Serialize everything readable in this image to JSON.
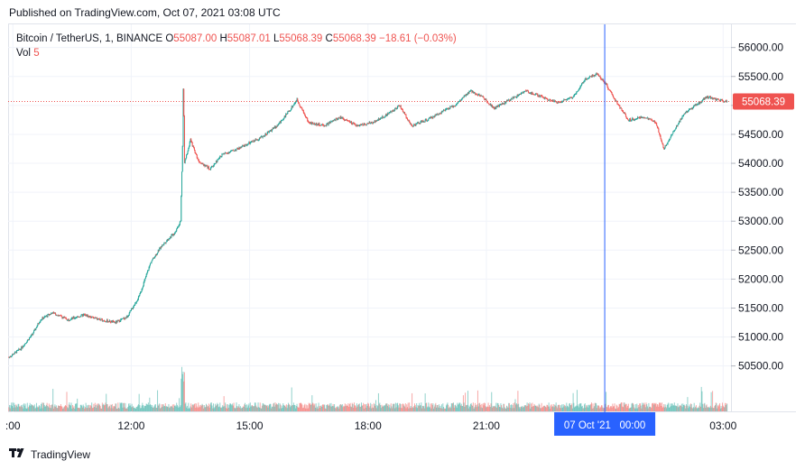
{
  "header": {
    "published": "Published on TradingView.com, Oct 07, 2021 03:08 UTC"
  },
  "legend": {
    "symbol": "Bitcoin / TetherUS, 1, BINANCE",
    "o_label": "O",
    "o_value": "55087.00",
    "h_label": "H",
    "h_value": "55087.01",
    "l_label": "L",
    "l_value": "55068.39",
    "c_label": "C",
    "c_value": "55068.39",
    "change": "−18.61 (−0.03%)",
    "vol_label": "Vol",
    "vol_value": "5"
  },
  "footer": {
    "brand": "TradingView",
    "logo_icon": "tradingview-logo-icon"
  },
  "colors": {
    "up": "#26a69a",
    "down": "#ef5350",
    "crosshair": "#2962ff",
    "price_tag": "#ef5350"
  },
  "chart_data": {
    "type": "candlestick",
    "symbol": "Bitcoin / TetherUS",
    "interval": "1",
    "exchange": "BINANCE",
    "last_price": 55068.39,
    "last_price_label": "55068.39",
    "crosshair_label": "07 Oct '21   00:00",
    "ylim": [
      49700,
      56400
    ],
    "y_ticks": [
      50500,
      51000,
      51500,
      52000,
      52500,
      53000,
      53500,
      54000,
      54500,
      55000,
      55500,
      56000
    ],
    "y_tick_labels": [
      "50500.00",
      "51000.00",
      "51500.00",
      "52000.00",
      "52500.00",
      "53000.00",
      "53500.00",
      "54000.00",
      "54500.00",
      "55000.00",
      "55500.00",
      "56000.00"
    ],
    "x_range_hours": [
      8.88,
      27.2
    ],
    "x_ticks": [
      {
        "hour": 9,
        "label": ":00"
      },
      {
        "hour": 12,
        "label": "12:00"
      },
      {
        "hour": 15,
        "label": "15:00"
      },
      {
        "hour": 18,
        "label": "18:00"
      },
      {
        "hour": 21,
        "label": "21:00"
      },
      {
        "hour": 27,
        "label": "03:00"
      }
    ],
    "crosshair_hour": 24,
    "price_path": [
      [
        8.9,
        50650
      ],
      [
        9.2,
        50800
      ],
      [
        9.5,
        51050
      ],
      [
        9.7,
        51300
      ],
      [
        10.0,
        51420
      ],
      [
        10.4,
        51300
      ],
      [
        10.8,
        51380
      ],
      [
        11.2,
        51300
      ],
      [
        11.6,
        51250
      ],
      [
        11.9,
        51350
      ],
      [
        12.2,
        51700
      ],
      [
        12.5,
        52300
      ],
      [
        12.8,
        52600
      ],
      [
        13.1,
        52800
      ],
      [
        13.25,
        53000
      ],
      [
        13.3,
        54300
      ],
      [
        13.32,
        55500
      ],
      [
        13.35,
        54000
      ],
      [
        13.5,
        54400
      ],
      [
        13.7,
        54050
      ],
      [
        14.0,
        53900
      ],
      [
        14.3,
        54150
      ],
      [
        14.7,
        54250
      ],
      [
        15.0,
        54350
      ],
      [
        15.3,
        54450
      ],
      [
        15.7,
        54650
      ],
      [
        16.0,
        54900
      ],
      [
        16.2,
        55100
      ],
      [
        16.5,
        54700
      ],
      [
        16.9,
        54650
      ],
      [
        17.3,
        54800
      ],
      [
        17.7,
        54650
      ],
      [
        18.1,
        54700
      ],
      [
        18.5,
        54850
      ],
      [
        18.8,
        55000
      ],
      [
        19.1,
        54650
      ],
      [
        19.5,
        54750
      ],
      [
        19.9,
        54900
      ],
      [
        20.2,
        55000
      ],
      [
        20.6,
        55250
      ],
      [
        20.9,
        55150
      ],
      [
        21.2,
        54950
      ],
      [
        21.6,
        55100
      ],
      [
        22.0,
        55250
      ],
      [
        22.4,
        55150
      ],
      [
        22.8,
        55050
      ],
      [
        23.2,
        55150
      ],
      [
        23.5,
        55450
      ],
      [
        23.8,
        55550
      ],
      [
        24.0,
        55400
      ],
      [
        24.3,
        55050
      ],
      [
        24.6,
        54750
      ],
      [
        25.0,
        54800
      ],
      [
        25.3,
        54700
      ],
      [
        25.5,
        54250
      ],
      [
        25.7,
        54500
      ],
      [
        26.0,
        54850
      ],
      [
        26.3,
        55000
      ],
      [
        26.6,
        55150
      ],
      [
        26.85,
        55100
      ],
      [
        27.1,
        55068
      ]
    ],
    "volume_scale_max": 100
  }
}
